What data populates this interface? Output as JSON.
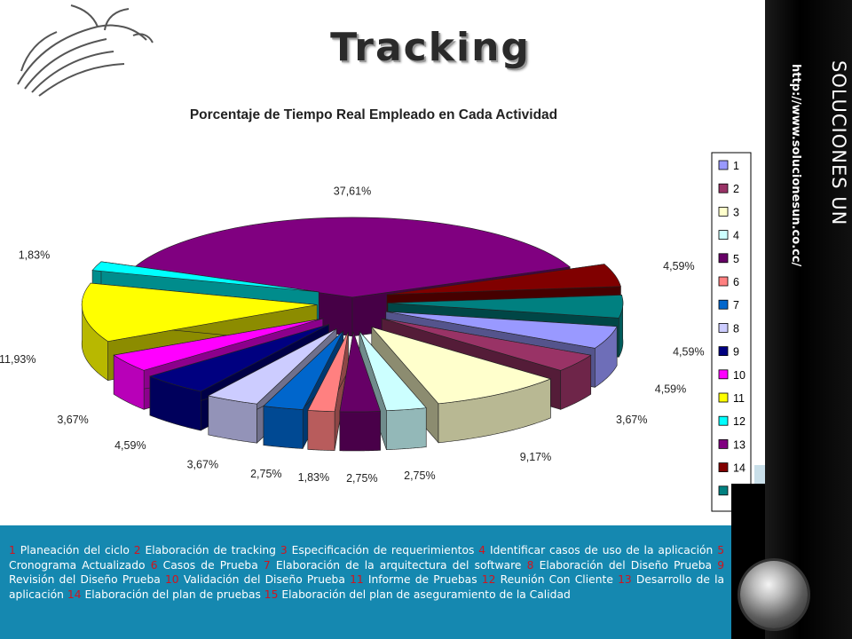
{
  "title": "Tracking",
  "side": {
    "brand": "SOLUCIONES UN",
    "url": "http://www.solucionesun.co.cc/"
  },
  "chart_data": {
    "type": "pie",
    "title": "Porcentaje de Tiempo Real Empleado en Cada Actividad",
    "legend_position": "right",
    "categories": [
      "1",
      "2",
      "3",
      "4",
      "5",
      "6",
      "7",
      "8",
      "9",
      "10",
      "11",
      "12",
      "13",
      "14",
      "15"
    ],
    "values": [
      4.59,
      3.67,
      9.17,
      2.75,
      2.75,
      1.83,
      2.75,
      3.67,
      4.59,
      3.67,
      11.93,
      1.83,
      37.61,
      4.59,
      4.59
    ],
    "labels": [
      "4,59%",
      "3,67%",
      "9,17%",
      "2,75%",
      "2,75%",
      "1,83%",
      "2,75%",
      "3,67%",
      "4,59%",
      "3,67%",
      "11,93%",
      "1,83%",
      "37,61%",
      "4,59%",
      "4,59%"
    ],
    "colors": [
      "#9999ff",
      "#993366",
      "#ffffcc",
      "#ccffff",
      "#660066",
      "#ff8080",
      "#0066cc",
      "#ccccff",
      "#000080",
      "#ff00ff",
      "#ffff00",
      "#00ffff",
      "#800080",
      "#800000",
      "#008080"
    ]
  },
  "footer": {
    "items": [
      {
        "num": "1",
        "text": "Planeación del ciclo"
      },
      {
        "num": "2",
        "text": "Elaboración de tracking"
      },
      {
        "num": "3",
        "text": "Especificación de requerimientos"
      },
      {
        "num": "4",
        "text": "Identificar casos de uso de la aplicación"
      },
      {
        "num": "5",
        "text": "Cronograma Actualizado"
      },
      {
        "num": "6",
        "text": "Casos de Prueba"
      },
      {
        "num": "7",
        "text": "Elaboración de la arquitectura del software"
      },
      {
        "num": "8",
        "text": "Elaboración del Diseño Prueba"
      },
      {
        "num": "9",
        "text": "Revisión del Diseño Prueba"
      },
      {
        "num": "10",
        "text": "Validación del Diseño Prueba"
      },
      {
        "num": "11",
        "text": "Informe de Pruebas"
      },
      {
        "num": "12",
        "text": "Reunión Con Cliente"
      },
      {
        "num": "13",
        "text": "Desarrollo de la aplicación"
      },
      {
        "num": "14",
        "text": "Elaboración del plan de pruebas"
      },
      {
        "num": "15",
        "text": "Elaboración del plan de aseguramiento de la Calidad"
      }
    ]
  }
}
